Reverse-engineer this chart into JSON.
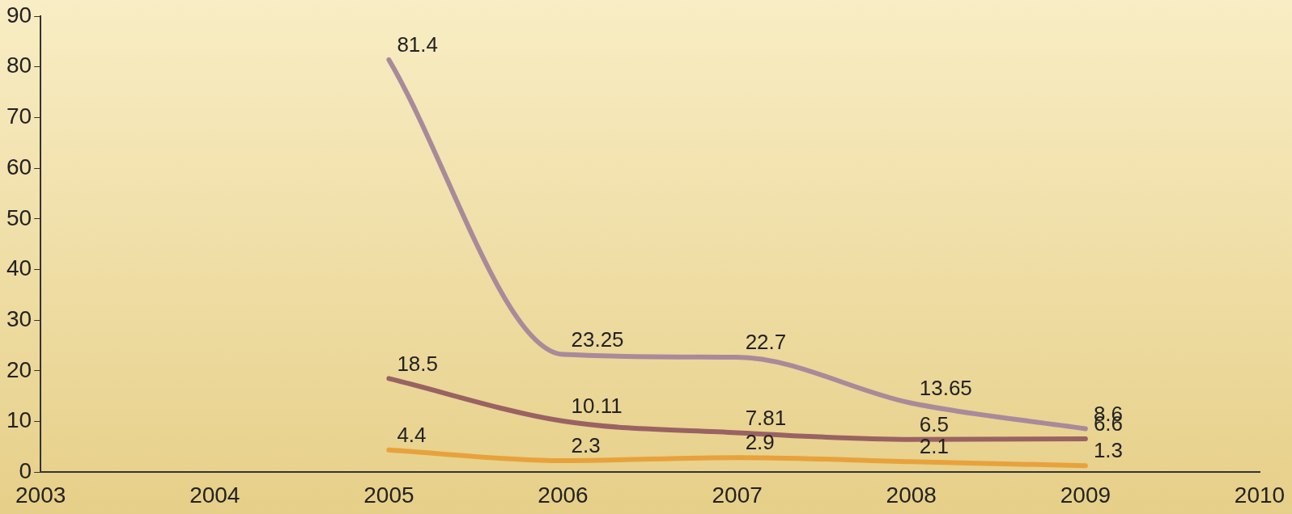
{
  "chart_data": {
    "type": "line",
    "x": [
      2005,
      2006,
      2007,
      2008,
      2009
    ],
    "series": [
      {
        "color": "#a98a9a",
        "values": [
          81.4,
          23.25,
          22.7,
          13.65,
          8.6
        ]
      },
      {
        "color": "#9a6262",
        "values": [
          18.5,
          10.11,
          7.81,
          6.5,
          6.6
        ]
      },
      {
        "color": "#e8a23c",
        "values": [
          4.4,
          2.3,
          2.9,
          2.1,
          1.3
        ]
      }
    ],
    "xlim": [
      2003,
      2010
    ],
    "xticks": [
      2003,
      2004,
      2005,
      2006,
      2007,
      2008,
      2009,
      2010
    ],
    "ylim": [
      0,
      90
    ],
    "yticks": [
      0,
      10,
      20,
      30,
      40,
      50,
      60,
      70,
      80,
      90
    ],
    "data_labels": true,
    "grid": false,
    "legend": false,
    "marker": "none",
    "line_style": "solid"
  }
}
